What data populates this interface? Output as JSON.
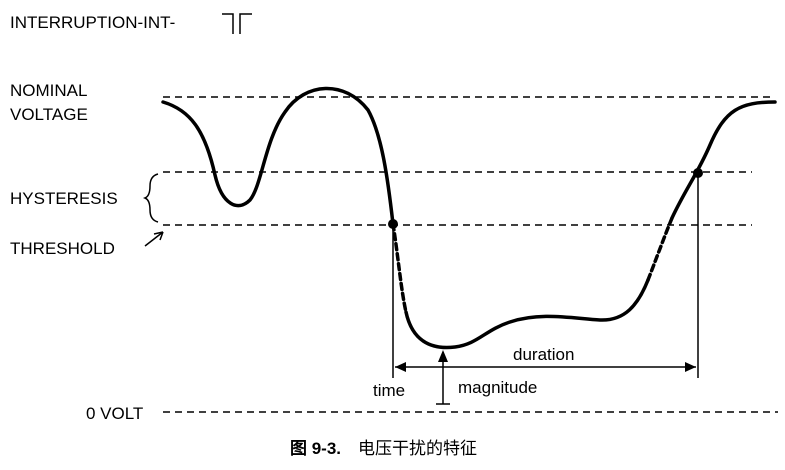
{
  "header": {
    "title": "INTERRUPTION-INT-"
  },
  "labels": {
    "nominal_1": "NOMINAL",
    "nominal_2": "VOLTAGE",
    "hysteresis": "HYSTERESIS",
    "threshold": "THRESHOLD",
    "zero_volt": "0 VOLT",
    "time": "time",
    "magnitude": "magnitude",
    "duration": "duration"
  },
  "caption": {
    "number": "图 9-3.",
    "text": "电压干扰的特征"
  }
}
